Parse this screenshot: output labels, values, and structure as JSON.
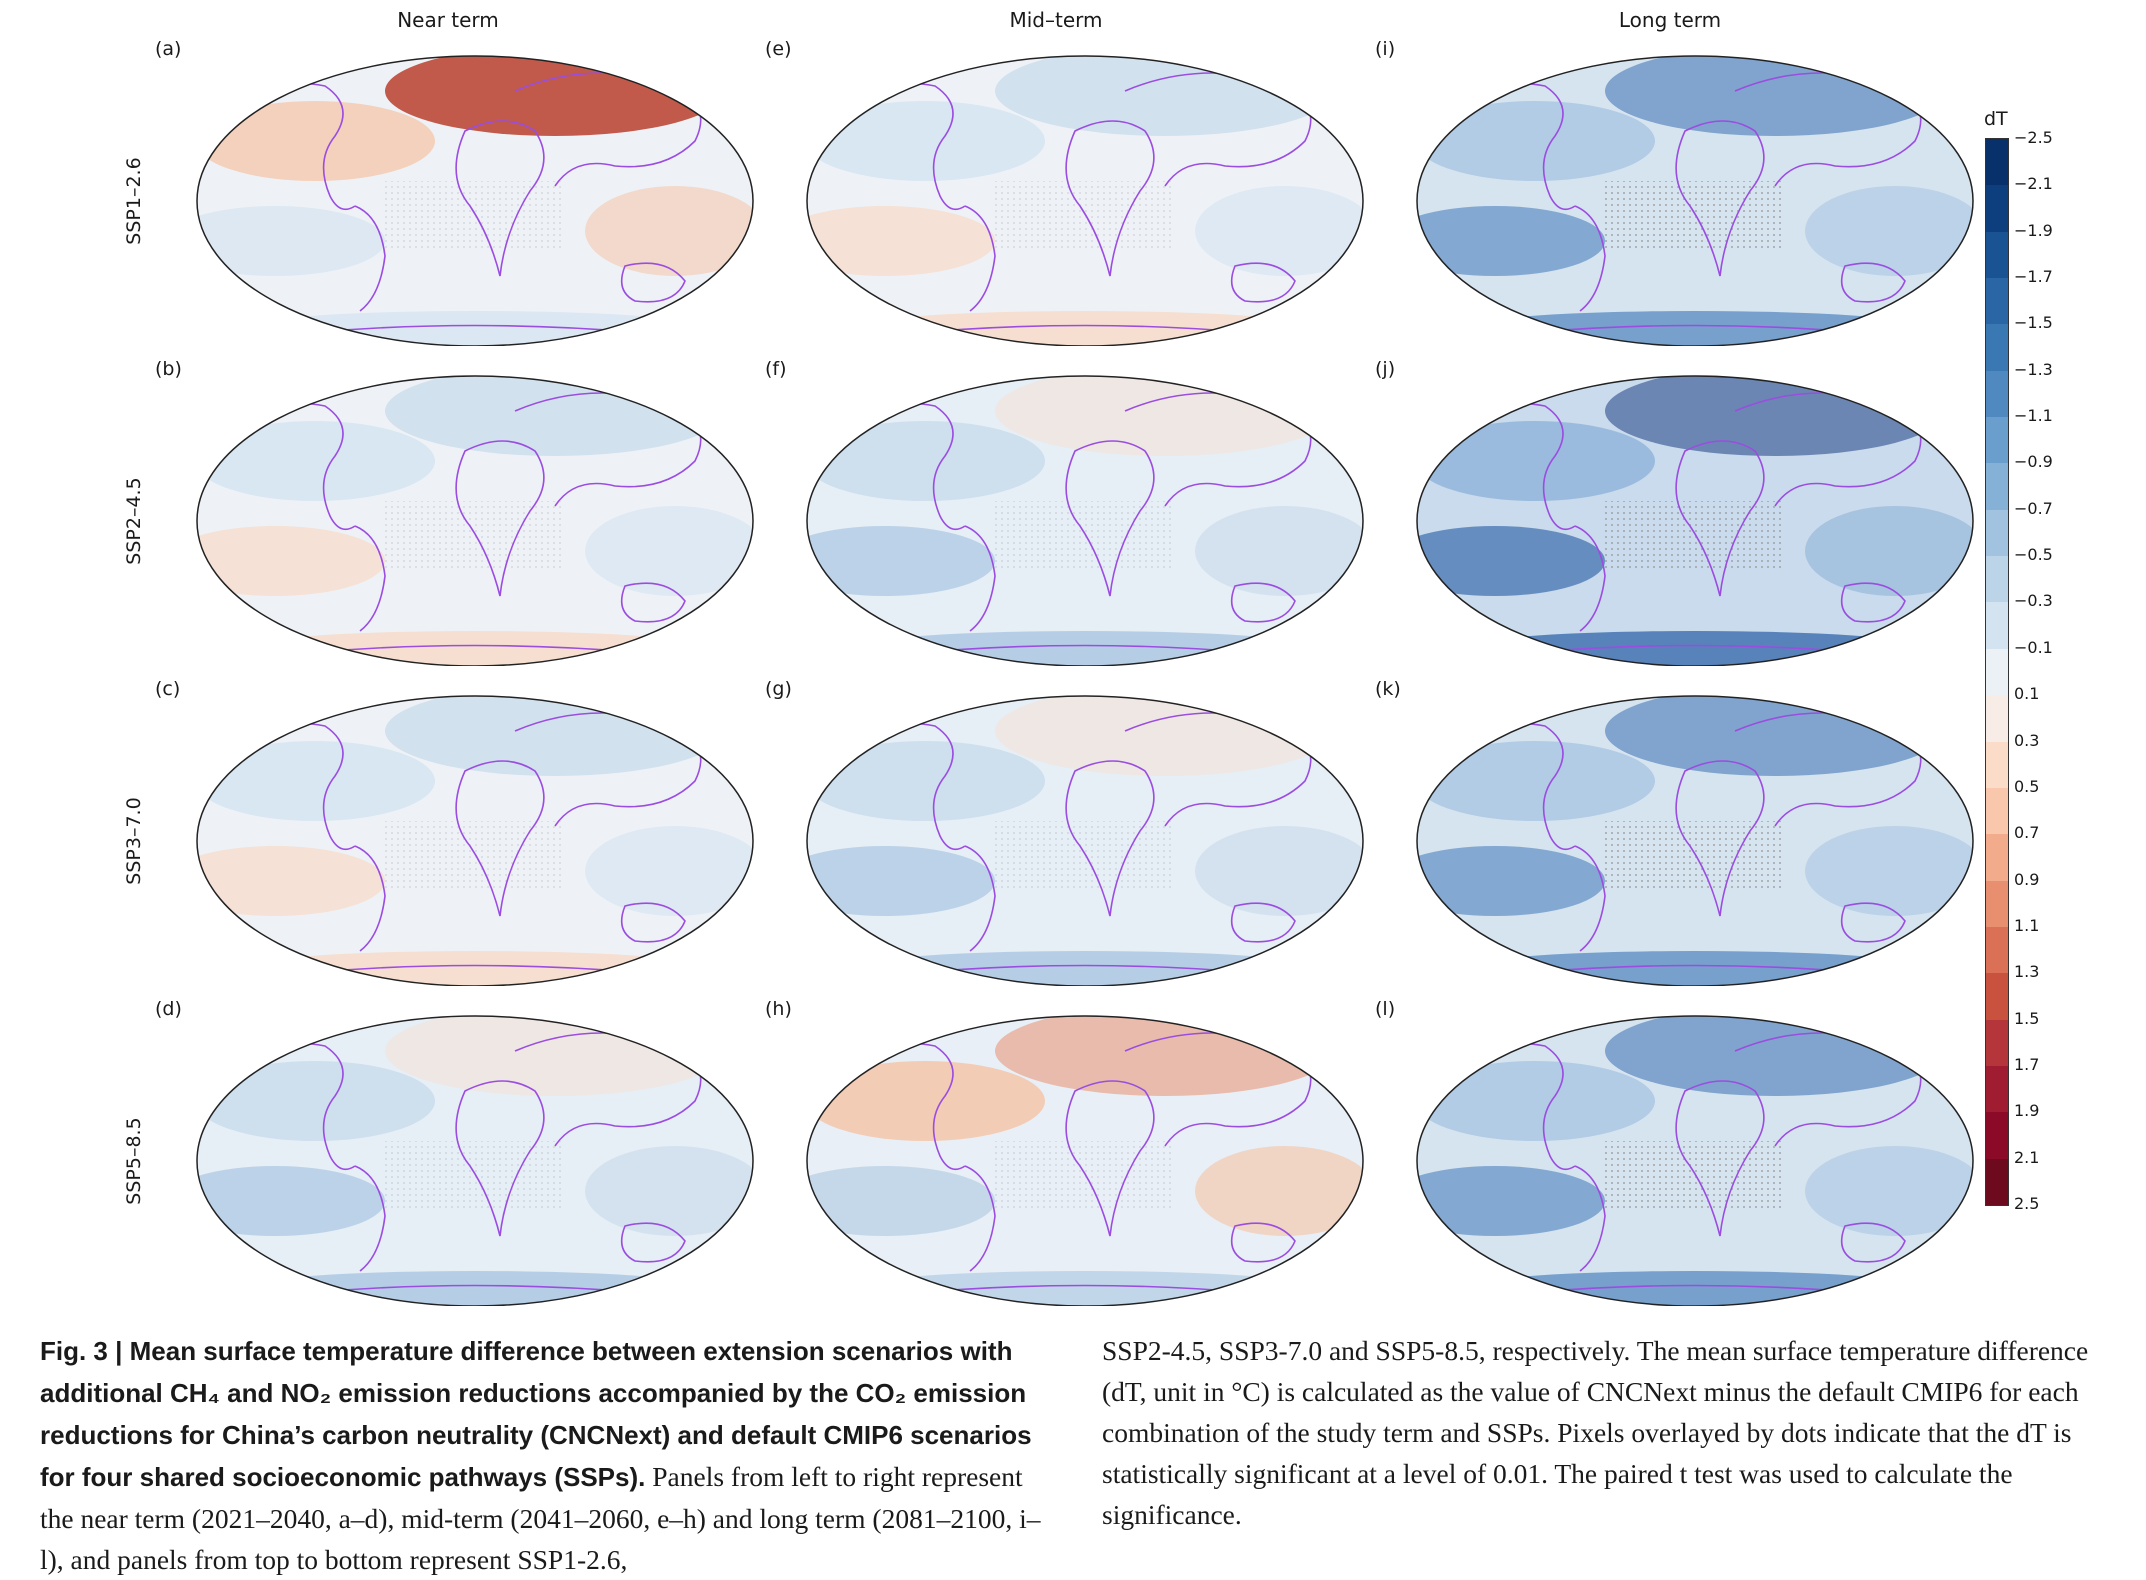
{
  "columns": [
    "Near term",
    "Mid–term",
    "Long term"
  ],
  "rows": [
    "SSP1–2.6",
    "SSP2–4.5",
    "SSP3–7.0",
    "SSP5–8.5"
  ],
  "panels": [
    {
      "label": "(a)",
      "col": 0,
      "row": 0,
      "tone": "warm-north"
    },
    {
      "label": "(b)",
      "col": 0,
      "row": 1,
      "tone": "light-mixed"
    },
    {
      "label": "(c)",
      "col": 0,
      "row": 2,
      "tone": "light-mixed"
    },
    {
      "label": "(d)",
      "col": 0,
      "row": 3,
      "tone": "light-blue"
    },
    {
      "label": "(e)",
      "col": 1,
      "row": 0,
      "tone": "light-mixed"
    },
    {
      "label": "(f)",
      "col": 1,
      "row": 1,
      "tone": "light-blue"
    },
    {
      "label": "(g)",
      "col": 1,
      "row": 2,
      "tone": "light-blue"
    },
    {
      "label": "(h)",
      "col": 1,
      "row": 3,
      "tone": "warm-pacific"
    },
    {
      "label": "(i)",
      "col": 2,
      "row": 0,
      "tone": "blue"
    },
    {
      "label": "(j)",
      "col": 2,
      "row": 1,
      "tone": "strong-blue"
    },
    {
      "label": "(k)",
      "col": 2,
      "row": 2,
      "tone": "blue"
    },
    {
      "label": "(l)",
      "col": 2,
      "row": 3,
      "tone": "blue"
    }
  ],
  "colorbar": {
    "title": "dT",
    "ticks": [
      "−2.5",
      "−2.1",
      "−1.9",
      "−1.7",
      "−1.5",
      "−1.3",
      "−1.1",
      "−0.9",
      "−0.7",
      "−0.5",
      "−0.3",
      "−0.1",
      "0.1",
      "0.3",
      "0.5",
      "0.7",
      "0.9",
      "1.1",
      "1.3",
      "1.5",
      "1.7",
      "1.9",
      "2.1",
      "2.5"
    ],
    "colors": [
      "#08306b",
      "#0d3f7e",
      "#1a5393",
      "#2a66a6",
      "#3a78b4",
      "#4f89c0",
      "#6a9ecc",
      "#86b1d6",
      "#a2c3df",
      "#bcd4e8",
      "#d3e3f0",
      "#ecf1f6",
      "#f7ece6",
      "#fadcc9",
      "#f8c7ac",
      "#f2ac8c",
      "#e88f6f",
      "#da7055",
      "#c9523f",
      "#b5363a",
      "#a01d31",
      "#8a0a28",
      "#6e0a1e"
    ]
  },
  "caption": {
    "left_bold": "Fig. 3 | Mean surface temperature difference between extension scenarios with additional CH₄ and NO₂ emission reductions accompanied by the CO₂ emission reductions for China’s carbon neutrality (CNCNext) and default CMIP6 scenarios for four shared socioeconomic pathways (SSPs).",
    "left_text": " Panels from left to right represent the near term (2021–2040, a–d), mid-term (2041–2060, e–h) and long term (2081–2100, i–l), and panels from top to bottom represent SSP1-2.6,",
    "right_text": "SSP2-4.5, SSP3-7.0 and SSP5-8.5, respectively. The mean surface temperature difference (dT, unit in °C) is calculated as the value of CNCNext minus the default CMIP6 for each combination of the study term and SSPs. Pixels overlayed by dots indicate that the dT is statistically significant at a level of 0.01. The paired t test was used to calculate the significance."
  }
}
